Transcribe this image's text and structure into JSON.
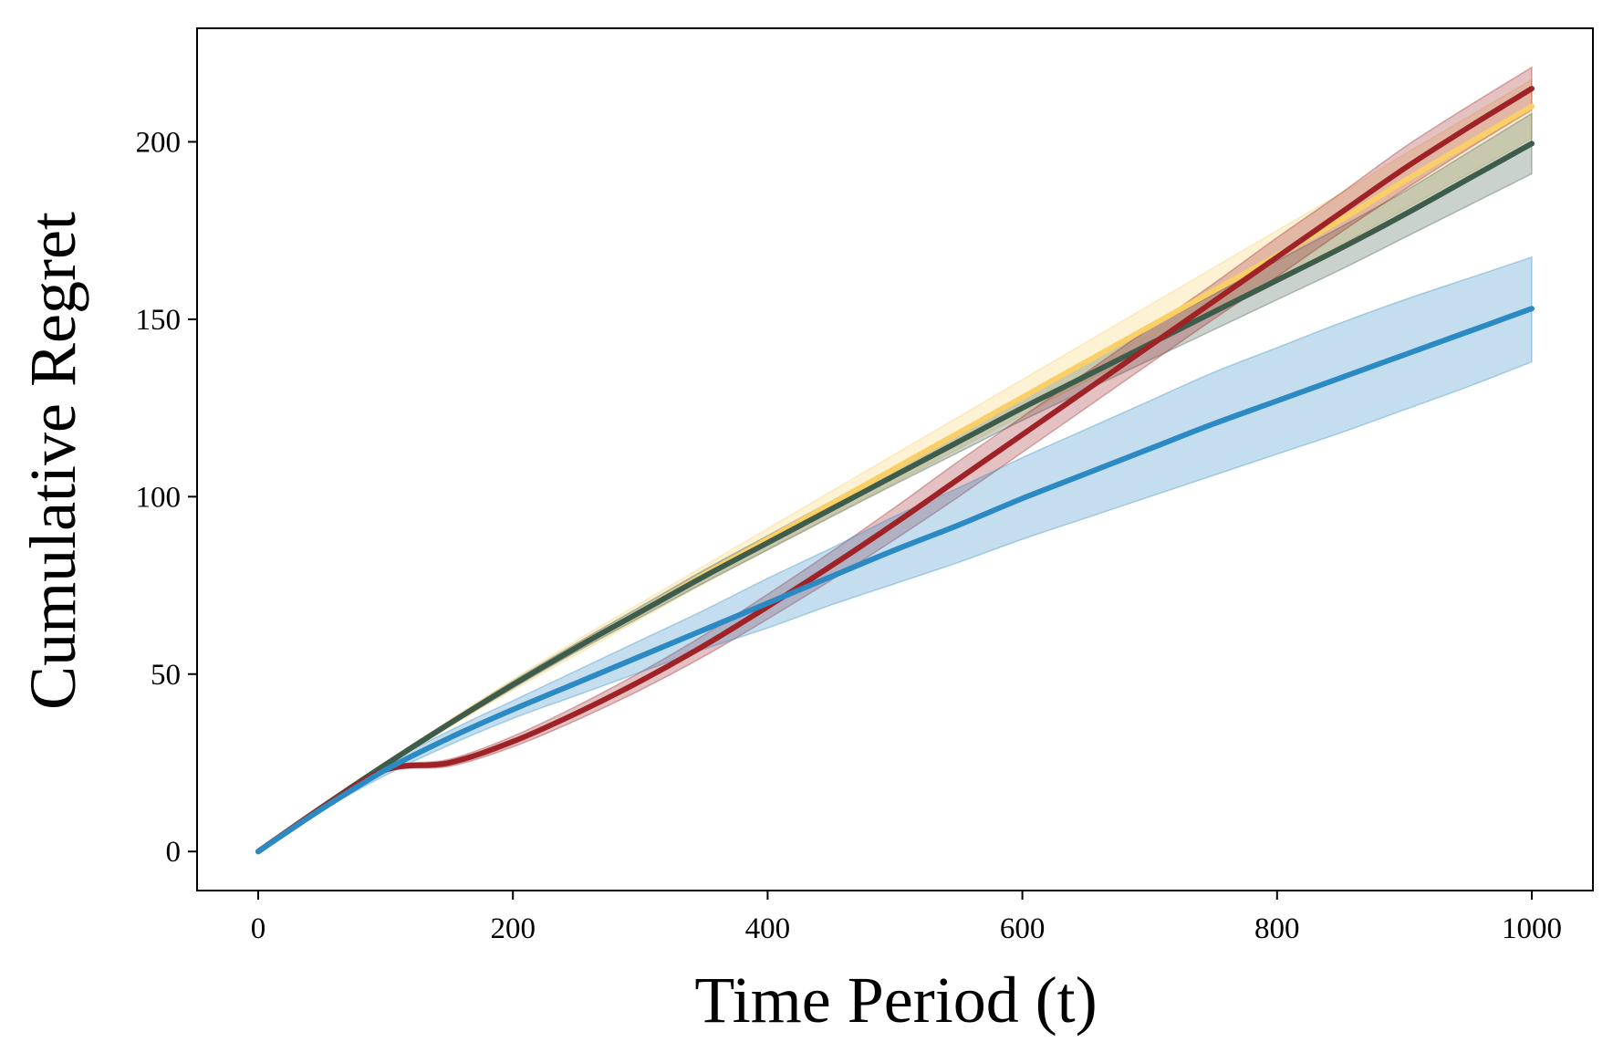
{
  "chart_data": {
    "type": "line",
    "title": "",
    "xlabel": "Time Period (t)",
    "ylabel": "Cumulative Regret",
    "xlim": [
      -48,
      1048
    ],
    "ylim": [
      -11,
      232
    ],
    "xticks": [
      0,
      200,
      400,
      600,
      800,
      1000
    ],
    "yticks": [
      0,
      50,
      100,
      150,
      200
    ],
    "grid": false,
    "legend": "none",
    "x": [
      0,
      50,
      100,
      150,
      200,
      250,
      300,
      350,
      400,
      450,
      500,
      550,
      600,
      650,
      700,
      750,
      800,
      850,
      900,
      950,
      1000
    ],
    "series": [
      {
        "name": "yellow",
        "color": "#f9cf66",
        "values": [
          0,
          12.5,
          24.5,
          36,
          47,
          57.5,
          67.5,
          78,
          88,
          98,
          108,
          118,
          128,
          138,
          148,
          158,
          168,
          178,
          189,
          199.5,
          210
        ],
        "lower": [
          0,
          12.3,
          24,
          35,
          45.5,
          55.5,
          65.5,
          75.5,
          85,
          94.5,
          104,
          113.5,
          123,
          132.5,
          142,
          151.5,
          161,
          171,
          181,
          191,
          201
        ],
        "upper": [
          0,
          12.7,
          25,
          37,
          48.5,
          59.5,
          70,
          80.5,
          91,
          101.5,
          112,
          122.5,
          133,
          143.5,
          154,
          164.5,
          175,
          185.5,
          196.5,
          207,
          217.5
        ]
      },
      {
        "name": "dark-green",
        "color": "#3e5c4b",
        "values": [
          0,
          12.5,
          24.5,
          36,
          47,
          57.5,
          67.5,
          77.5,
          87,
          96.5,
          106,
          115.5,
          125,
          134,
          143,
          152,
          161,
          170,
          179.5,
          189.5,
          199.5
        ],
        "lower": [
          0,
          12.3,
          24,
          35.3,
          46,
          56.3,
          66,
          75.7,
          85,
          94.3,
          103.5,
          112.5,
          121.5,
          130,
          138.5,
          147,
          155.5,
          164,
          173,
          182,
          191
        ],
        "upper": [
          0,
          12.7,
          25,
          36.7,
          48,
          58.7,
          69,
          79.3,
          89,
          98.7,
          108.5,
          118.5,
          128.5,
          138,
          147.5,
          157,
          166.5,
          176,
          186,
          197,
          208
        ]
      },
      {
        "name": "red",
        "color": "#9e2226",
        "values": [
          0,
          12.3,
          23,
          25,
          31,
          39,
          48,
          58,
          69,
          80.5,
          92.5,
          105,
          117.5,
          130,
          142.5,
          155,
          167.5,
          180,
          192.5,
          204,
          215
        ],
        "lower": [
          0,
          12.1,
          22.4,
          24,
          29.5,
          37,
          45.5,
          55,
          65.5,
          76.5,
          88,
          100,
          112.5,
          125,
          137.5,
          150,
          162,
          174.5,
          186.5,
          198,
          209
        ],
        "upper": [
          0,
          12.5,
          23.6,
          26,
          32.5,
          41,
          50.5,
          61,
          72.5,
          84.5,
          97,
          110,
          122.5,
          135,
          147.5,
          160,
          173,
          185.5,
          198.5,
          210,
          221
        ]
      },
      {
        "name": "blue",
        "color": "#2b8ac4",
        "values": [
          0,
          12,
          23,
          32,
          40,
          47.5,
          55,
          62.5,
          70,
          77.5,
          85,
          92,
          99.5,
          106.5,
          113.5,
          120.5,
          127,
          133.5,
          140,
          146.5,
          153
        ],
        "lower": [
          0,
          11.5,
          21.5,
          30,
          37.5,
          44,
          50.5,
          57,
          63,
          69.5,
          75.5,
          81.5,
          88,
          94,
          100,
          106,
          112,
          118,
          124.5,
          131,
          138
        ],
        "upper": [
          0,
          12.5,
          24.5,
          34,
          42.5,
          51,
          59.5,
          68,
          77,
          85.5,
          94.5,
          102.5,
          111,
          119,
          127,
          135,
          142,
          149,
          155.5,
          161.5,
          167.5
        ]
      }
    ]
  }
}
